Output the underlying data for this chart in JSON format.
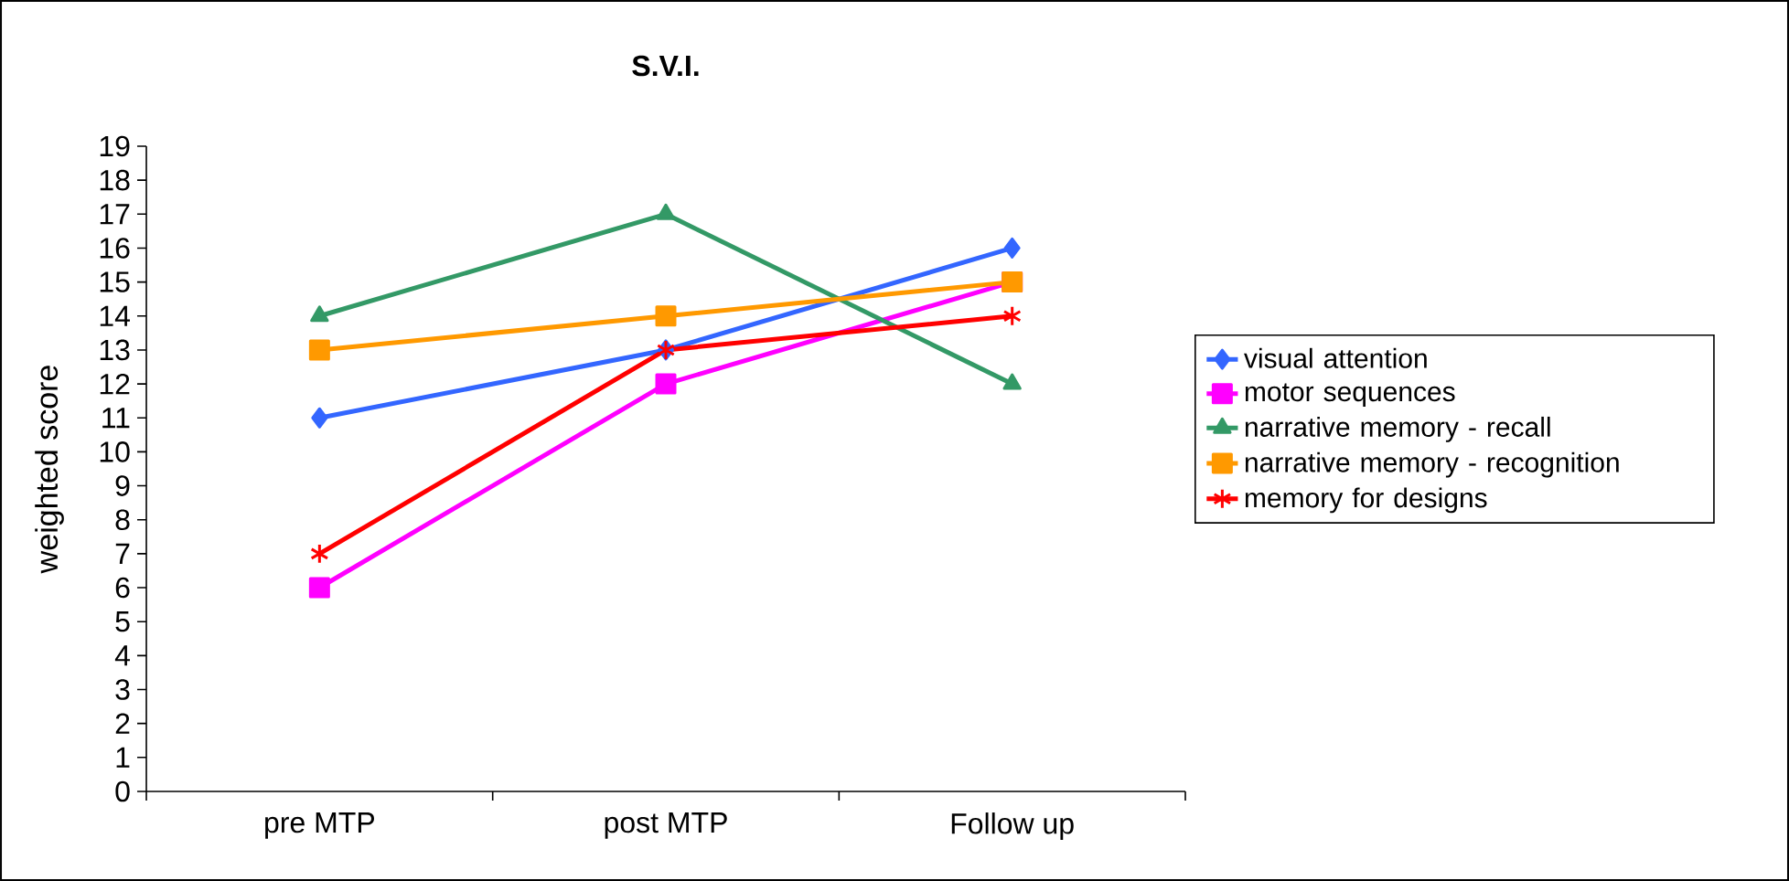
{
  "chart_data": {
    "type": "line",
    "title": "S.V.I.",
    "ylabel": "weighted score",
    "categories": [
      "pre MTP",
      "post MTP",
      "Follow up"
    ],
    "series": [
      {
        "name": "visual attention",
        "color": "#3366ff",
        "marker": "diamond",
        "values": [
          11,
          13,
          16
        ]
      },
      {
        "name": "motor sequences",
        "color": "#ff00ff",
        "marker": "square",
        "values": [
          6,
          12,
          15
        ]
      },
      {
        "name": "narrative memory - recall",
        "color": "#339966",
        "marker": "triangle",
        "values": [
          14,
          17,
          12
        ]
      },
      {
        "name": "narrative memory - recognition",
        "color": "#ff9900",
        "marker": "square",
        "values": [
          13,
          14,
          15
        ]
      },
      {
        "name": "memory for designs",
        "color": "#ff0000",
        "marker": "cross",
        "values": [
          7,
          13,
          14
        ]
      }
    ],
    "ylim": [
      0,
      19
    ],
    "yticks": [
      0,
      1,
      2,
      3,
      4,
      5,
      6,
      7,
      8,
      9,
      10,
      11,
      12,
      13,
      14,
      15,
      16,
      17,
      18,
      19
    ],
    "grid": false,
    "legend": "right",
    "line_style": "solid"
  }
}
